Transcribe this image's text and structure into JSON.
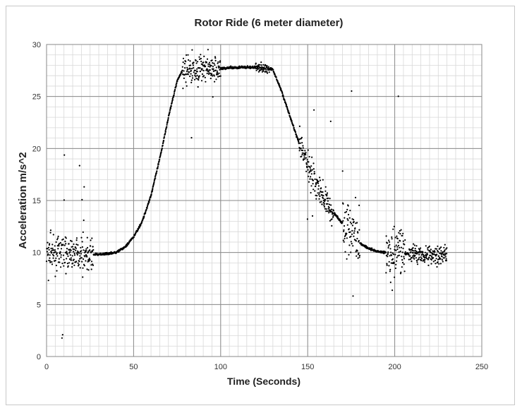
{
  "chart_data": {
    "type": "scatter",
    "title": "Rotor Ride (6 meter diameter)",
    "xlabel": "Time (Seconds)",
    "ylabel": "Acceleration m/s^2",
    "xlim": [
      0,
      250
    ],
    "ylim": [
      0,
      30
    ],
    "x_ticks": [
      "0",
      "50",
      "100",
      "150",
      "200",
      "250"
    ],
    "y_ticks": [
      "0",
      "5",
      "10",
      "15",
      "20",
      "25",
      "30"
    ],
    "grid": true,
    "legend": "none",
    "marker_color": "#000000",
    "series": [
      {
        "values": [
          [
            0,
            9.9
          ],
          [
            5,
            9.9
          ],
          [
            10,
            9.9
          ],
          [
            15,
            9.9
          ],
          [
            20,
            9.9
          ],
          [
            25,
            9.8
          ],
          [
            30,
            9.8
          ],
          [
            35,
            9.9
          ],
          [
            40,
            10.0
          ],
          [
            45,
            10.5
          ],
          [
            50,
            11.5
          ],
          [
            55,
            13.0
          ],
          [
            60,
            15.5
          ],
          [
            65,
            19.0
          ],
          [
            70,
            23.0
          ],
          [
            75,
            26.5
          ],
          [
            78,
            27.5
          ],
          [
            80,
            27.6
          ],
          [
            90,
            27.7
          ],
          [
            100,
            27.7
          ],
          [
            110,
            27.8
          ],
          [
            120,
            27.8
          ],
          [
            130,
            27.6
          ],
          [
            135,
            25.5
          ],
          [
            140,
            23.0
          ],
          [
            145,
            20.5
          ],
          [
            150,
            18.5
          ],
          [
            155,
            16.5
          ],
          [
            160,
            15.0
          ],
          [
            165,
            13.8
          ],
          [
            170,
            12.8
          ],
          [
            175,
            11.8
          ],
          [
            180,
            10.9
          ],
          [
            185,
            10.4
          ],
          [
            190,
            10.1
          ],
          [
            195,
            10.0
          ],
          [
            200,
            9.9
          ],
          [
            210,
            9.9
          ],
          [
            220,
            9.8
          ],
          [
            230,
            9.8
          ]
        ]
      }
    ]
  }
}
